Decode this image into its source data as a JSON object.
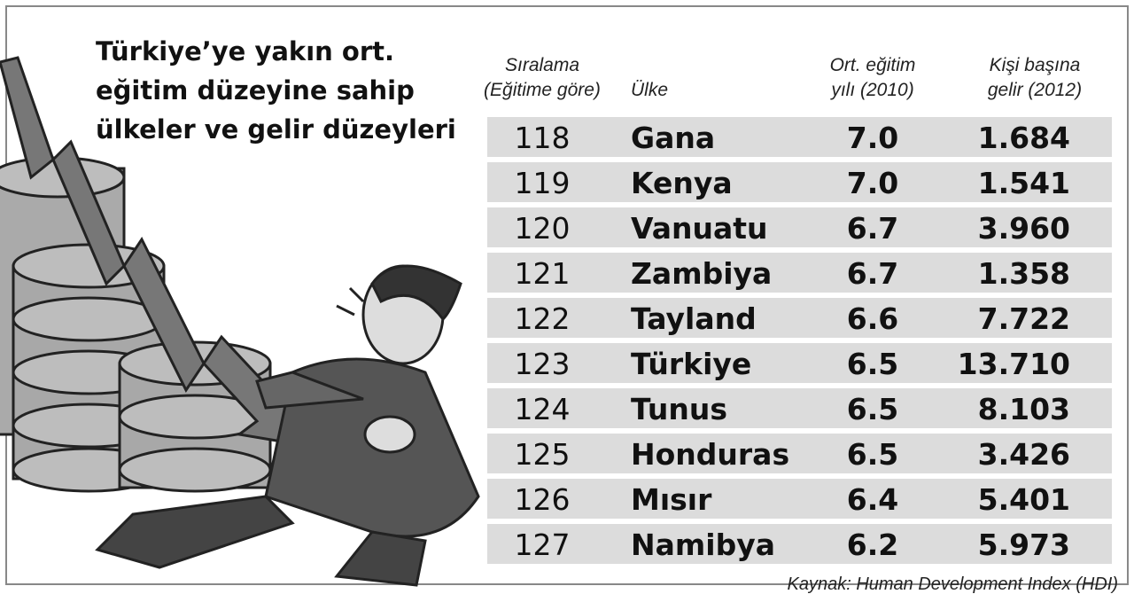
{
  "title": [
    "Türkiye’ye yakın ort.",
    "eğitim düzeyine sahip",
    "ülkeler ve gelir düzeyleri"
  ],
  "table": {
    "headers": [
      [
        "Sıralama",
        "(Eğitime göre)"
      ],
      [
        "Ülke"
      ],
      [
        "Ort. eğitim",
        "yılı (2010)"
      ],
      [
        "Kişi başına",
        "gelir (2012)"
      ]
    ],
    "rows": [
      [
        "118",
        "Gana",
        "7.0",
        "1.684"
      ],
      [
        "119",
        "Kenya",
        "7.0",
        "1.541"
      ],
      [
        "120",
        "Vanuatu",
        "6.7",
        "3.960"
      ],
      [
        "121",
        "Zambiya",
        "6.7",
        "1.358"
      ],
      [
        "122",
        "Tayland",
        "6.6",
        "7.722"
      ],
      [
        "123",
        "Türkiye",
        "6.5",
        "13.710"
      ],
      [
        "124",
        "Tunus",
        "6.5",
        "8.103"
      ],
      [
        "125",
        "Honduras",
        "6.5",
        "3.426"
      ],
      [
        "126",
        "Mısır",
        "6.4",
        "5.401"
      ],
      [
        "127",
        "Namibya",
        "6.2",
        "5.973"
      ]
    ]
  },
  "source": "Kaynak: Human Development Index (HDI)"
}
